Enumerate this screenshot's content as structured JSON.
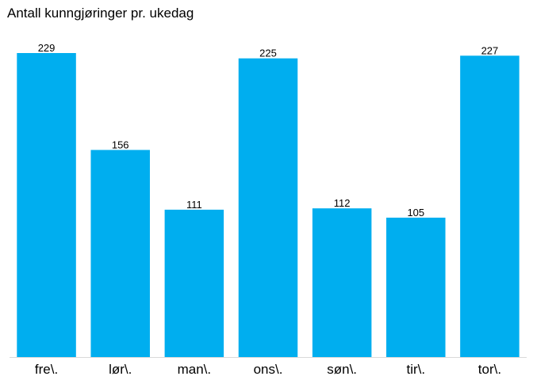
{
  "chart_data": {
    "type": "bar",
    "title": "Antall kunngjøringer pr. ukedag",
    "categories": [
      "fre\\.",
      "lør\\.",
      "man\\.",
      "ons\\.",
      "søn\\.",
      "tir\\.",
      "tor\\."
    ],
    "values": [
      229,
      156,
      111,
      225,
      112,
      105,
      227
    ],
    "xlabel": "",
    "ylabel": "",
    "ylim": [
      0,
      229
    ],
    "grid": false,
    "legend": "none",
    "bar_color": "#00AEEF",
    "axis_color": "#D9D9D9"
  }
}
